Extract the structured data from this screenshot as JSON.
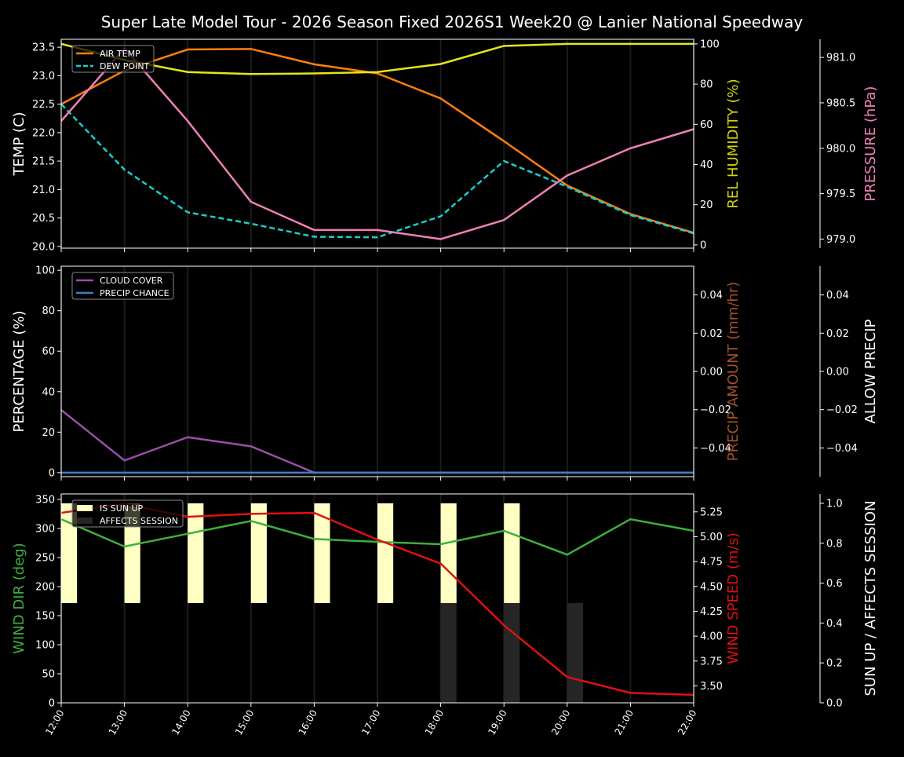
{
  "title": "Super Late Model Tour - 2026 Season Fixed 2026S1 Week20 @ Lanier National Speedway",
  "chart_data": [
    {
      "type": "line",
      "x": [
        "12:00",
        "13:00",
        "14:00",
        "15:00",
        "16:00",
        "17:00",
        "18:00",
        "19:00",
        "20:00",
        "21:00",
        "22:00"
      ],
      "axes": {
        "left": {
          "label": "TEMP (C)",
          "color": "#ffffff",
          "range": [
            19.97,
            23.64
          ],
          "ticks": [
            20.0,
            20.5,
            21.0,
            21.5,
            22.0,
            22.5,
            23.0,
            23.5
          ],
          "tick_labels": [
            "20.0",
            "20.5",
            "21.0",
            "21.5",
            "22.0",
            "22.5",
            "23.0",
            "23.5"
          ]
        },
        "right1": {
          "label": "REL HUMIDITY (%)",
          "color": "#d4d40c",
          "range": [
            -1.6,
            102.3
          ],
          "ticks": [
            0,
            20,
            40,
            60,
            80,
            100
          ],
          "tick_labels": [
            "0",
            "20",
            "40",
            "60",
            "80",
            "100"
          ]
        },
        "right2": {
          "label": "PRESSURE (hPa)",
          "color": "#f080b8",
          "range": [
            978.9,
            981.2
          ],
          "ticks": [
            979.0,
            979.5,
            980.0,
            980.5,
            981.0
          ],
          "tick_labels": [
            "979.0",
            "979.5",
            "980.0",
            "980.5",
            "981.0"
          ]
        }
      },
      "series": [
        {
          "name": "AIR TEMP",
          "axis": "left",
          "color": "#ff7f0e",
          "dash": false,
          "values": [
            22.5,
            23.09,
            23.46,
            23.47,
            23.2,
            23.04,
            22.6,
            21.85,
            21.07,
            20.57,
            20.24
          ]
        },
        {
          "name": "DEW POINT",
          "axis": "left",
          "color": "#17cfcf",
          "dash": true,
          "values": [
            22.5,
            21.35,
            20.6,
            20.4,
            20.17,
            20.16,
            20.53,
            21.5,
            21.05,
            20.55,
            20.23
          ]
        },
        {
          "axis": "right1",
          "color": "#e6e619",
          "dash": false,
          "values": [
            100,
            92,
            86,
            85,
            85.3,
            86,
            90,
            99,
            100,
            100,
            100
          ]
        },
        {
          "axis": "right2",
          "color": "#f080b8",
          "dash": false,
          "values": [
            980.3,
            981.1,
            980.3,
            979.41,
            979.1,
            979.1,
            979.0,
            979.21,
            979.7,
            980.0,
            980.21
          ]
        }
      ],
      "legend": "top-left",
      "grid": "vertical"
    },
    {
      "type": "line",
      "x": [
        "12:00",
        "13:00",
        "14:00",
        "15:00",
        "16:00",
        "17:00",
        "18:00",
        "19:00",
        "20:00",
        "21:00",
        "22:00"
      ],
      "axes": {
        "left": {
          "label": "PERCENTAGE (%)",
          "color": "#ffffff",
          "range": [
            -2,
            102
          ],
          "ticks": [
            0,
            20,
            40,
            60,
            80,
            100
          ],
          "tick_labels": [
            "0",
            "20",
            "40",
            "60",
            "80",
            "100"
          ]
        },
        "right1": {
          "label": "PRECIP AMOUNT (mm/hr)",
          "color": "#a0522d",
          "range": [
            -0.055,
            0.055
          ],
          "ticks": [
            -0.04,
            -0.02,
            0,
            0.02,
            0.04
          ],
          "tick_labels": [
            "−0.04",
            "−0.02",
            "0.00",
            "0.02",
            "0.04"
          ]
        },
        "right2": {
          "label": "ALLOW PRECIP",
          "color": "#ffffff",
          "range": [
            -0.055,
            0.055
          ],
          "ticks": [
            -0.04,
            -0.02,
            0,
            0.02,
            0.04
          ],
          "tick_labels": [
            "−0.04",
            "−0.02",
            "0.00",
            "0.02",
            "0.04"
          ]
        }
      },
      "series": [
        {
          "name": "CLOUD COVER",
          "axis": "left",
          "color": "#9b4fa8",
          "dash": false,
          "values": [
            31,
            6,
            17.5,
            13,
            0,
            0,
            0,
            0,
            0,
            0,
            0
          ]
        },
        {
          "name": "PRECIP CHANCE",
          "axis": "left",
          "color": "#3b82c4",
          "dash": false,
          "values": [
            0,
            0,
            0,
            0,
            0,
            0,
            0,
            0,
            0,
            0,
            0
          ]
        }
      ],
      "legend": "top-left",
      "grid": "vertical"
    },
    {
      "type": "line",
      "x": [
        "12:00",
        "13:00",
        "14:00",
        "15:00",
        "16:00",
        "17:00",
        "18:00",
        "19:00",
        "20:00",
        "21:00",
        "22:00"
      ],
      "axes": {
        "left": {
          "label": "WIND DIR (deg)",
          "color": "#3cb03c",
          "range": [
            0,
            359.5
          ],
          "ticks": [
            0,
            50,
            100,
            150,
            200,
            250,
            300,
            350
          ],
          "tick_labels": [
            "0",
            "50",
            "100",
            "150",
            "200",
            "250",
            "300",
            "350"
          ]
        },
        "right1": {
          "label": "WIND SPEED (m/s)",
          "color": "#e01010",
          "range": [
            3.33,
            5.43
          ],
          "ticks": [
            3.5,
            3.75,
            4.0,
            4.25,
            4.5,
            4.75,
            5.0,
            5.25
          ],
          "tick_labels": [
            "3.50",
            "3.75",
            "4.00",
            "4.25",
            "4.50",
            "4.75",
            "5.00",
            "5.25"
          ]
        },
        "right2": {
          "label": "SUN UP / AFFECTS SESSION",
          "color": "#ffffff",
          "range": [
            0,
            1.047
          ],
          "ticks": [
            0,
            0.2,
            0.4,
            0.6,
            0.8,
            1.0
          ],
          "tick_labels": [
            "0.0",
            "0.2",
            "0.4",
            "0.6",
            "0.8",
            "1.0"
          ]
        }
      },
      "bars": [
        {
          "name": "IS SUN UP",
          "color": "#ffffc4",
          "values": [
            1,
            1,
            1,
            1,
            1,
            1,
            1,
            1,
            0,
            0,
            0
          ]
        },
        {
          "name": "AFFECTS SESSION",
          "color": "#262626",
          "values": [
            0,
            0,
            0,
            0,
            0,
            0,
            1,
            1,
            1,
            0,
            0
          ]
        }
      ],
      "series": [
        {
          "axis": "left",
          "color": "#3cb03c",
          "dash": false,
          "values": [
            316,
            269,
            291,
            313,
            282,
            277,
            273,
            296,
            255,
            316,
            296
          ]
        },
        {
          "axis": "right1",
          "color": "#e01010",
          "dash": false,
          "values": [
            5.24,
            5.33,
            5.2,
            5.23,
            5.24,
            4.97,
            4.73,
            4.11,
            3.59,
            3.43,
            3.41
          ]
        }
      ],
      "legend": "top-left",
      "grid": "vertical"
    }
  ]
}
